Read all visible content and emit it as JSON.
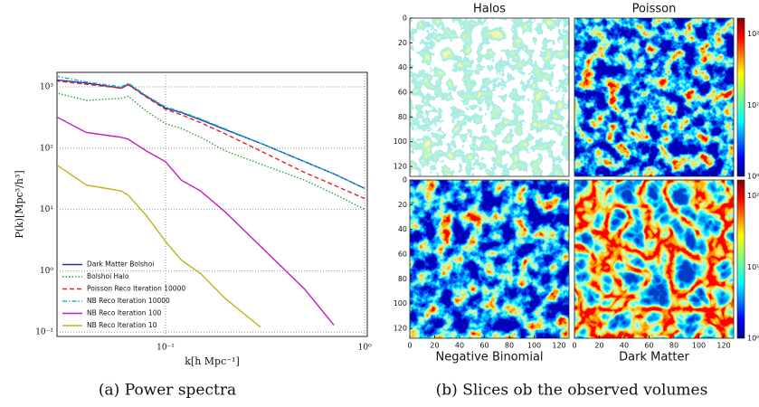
{
  "chart_data": {
    "type": "line",
    "y_label": "P(k)[Mpc³/h³]",
    "x_label": "k[h Mpc⁻¹]",
    "log_x": true,
    "log_y": true,
    "grid": true,
    "legend": "lower left",
    "x": [
      0.028,
      0.04,
      0.06,
      0.065,
      0.08,
      0.1,
      0.12,
      0.15,
      0.2,
      0.3,
      0.5,
      0.7,
      1.0
    ],
    "xlim": [
      0.0285,
      1.03
    ],
    "ylim": [
      0.085,
      1720
    ],
    "xticks": [
      {
        "value": 0.1,
        "label": "10⁻¹"
      },
      {
        "value": 1,
        "label": "10⁰"
      }
    ],
    "yticks": [
      {
        "value": 0.1,
        "label": "10⁻¹"
      },
      {
        "value": 1,
        "label": "10⁰"
      },
      {
        "value": 10,
        "label": "10¹"
      },
      {
        "value": 100,
        "label": "10²"
      },
      {
        "value": 1000,
        "label": "10³"
      }
    ],
    "series": [
      {
        "name": "Dark Matter Bolshoi",
        "color": "#1f2fd0",
        "linestyle": "solid",
        "values": [
          1300,
          1150,
          950,
          1100,
          700,
          450,
          380,
          290,
          200,
          120,
          60,
          38,
          22
        ]
      },
      {
        "name": "Bolshoi Halo",
        "color": "#3a9a3a",
        "linestyle": "dotted",
        "values": [
          800,
          600,
          650,
          700,
          400,
          250,
          210,
          150,
          90,
          55,
          30,
          18,
          10
        ]
      },
      {
        "name": "Poisson Reco Iteration 10000",
        "color": "#e8231c",
        "linestyle": "dashed",
        "values": [
          1250,
          1100,
          950,
          1080,
          680,
          430,
          350,
          260,
          170,
          90,
          40,
          25,
          15
        ]
      },
      {
        "name": "NB Reco Iteration 10000",
        "color": "#18b8b0",
        "linestyle": "dashdot",
        "values": [
          1500,
          1200,
          1000,
          1150,
          720,
          470,
          390,
          300,
          205,
          120,
          60,
          38,
          22
        ]
      },
      {
        "name": "NB Reco Iteration 100",
        "color": "#c21cc2",
        "linestyle": "solid",
        "values": [
          330,
          180,
          150,
          140,
          90,
          60,
          30,
          20,
          9,
          2.5,
          0.5,
          0.13,
          null
        ]
      },
      {
        "name": "NB Reco Iteration 10",
        "color": "#c2b21c",
        "linestyle": "solid",
        "values": [
          55,
          25,
          20,
          17,
          8,
          3,
          1.5,
          0.9,
          0.35,
          0.12,
          null,
          null,
          null
        ]
      }
    ]
  },
  "slices": {
    "titles": [
      "Halos",
      "Poisson",
      "Negative Binomial",
      "Dark Matter"
    ],
    "ticks": [
      0,
      20,
      40,
      60,
      80,
      100,
      120
    ],
    "range": [
      0,
      128
    ],
    "colorbar_labels": [
      "10⁰",
      "10¹",
      "10²"
    ]
  },
  "captions": [
    "(a) Power spectra",
    "(b) Slices ob the observed volumes"
  ]
}
